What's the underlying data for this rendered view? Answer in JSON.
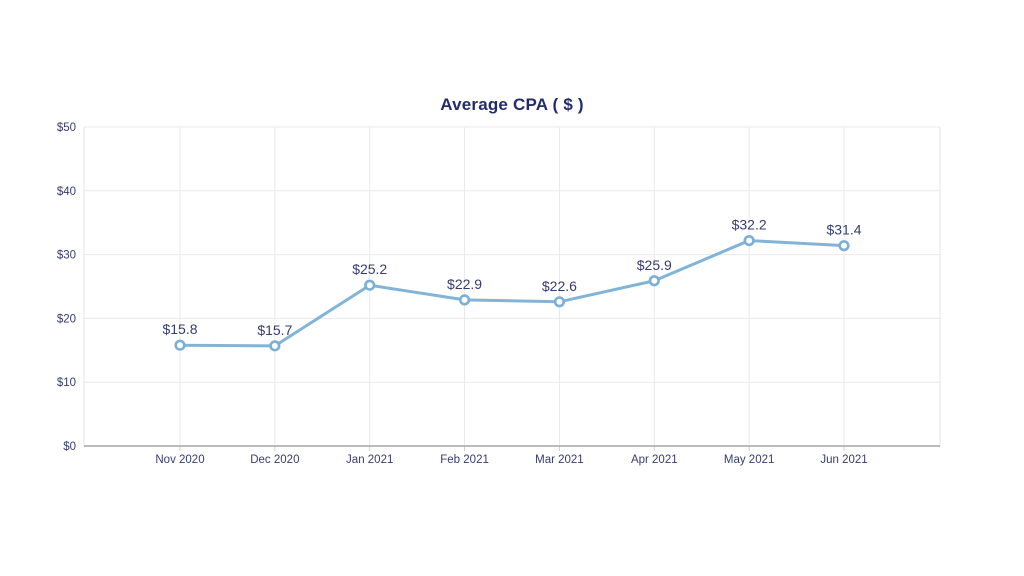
{
  "chart": {
    "title": "Average CPA ( $ )"
  },
  "chart_data": {
    "type": "line",
    "title": "Average CPA ( $ )",
    "categories": [
      "Nov 2020",
      "Dec 2020",
      "Jan 2021",
      "Feb 2021",
      "Mar 2021",
      "Apr 2021",
      "May 2021",
      "Jun 2021"
    ],
    "values": [
      15.8,
      15.7,
      25.2,
      22.9,
      22.6,
      25.9,
      32.2,
      31.4
    ],
    "point_labels": [
      "$15.8",
      "$15.7",
      "$25.2",
      "$22.9",
      "$22.6",
      "$25.9",
      "$32.2",
      "$31.4"
    ],
    "xlabel": "",
    "ylabel": "",
    "ylim": [
      0,
      50
    ],
    "y_ticks": [
      0,
      10,
      20,
      30,
      40,
      50
    ],
    "y_tick_labels": [
      "$0",
      "$10",
      "$20",
      "$30",
      "$40",
      "$50"
    ],
    "grid": true,
    "legend": "none",
    "colors": {
      "line": "#82b4d8",
      "marker_fill": "#ffffff",
      "marker_stroke": "#7bb0d6",
      "title_text": "#232c6a",
      "label_text": "#363d6e",
      "tick_text": "#363d6e",
      "grid_line": "#e9e9e9",
      "plot_border": "#e4e4e4",
      "bottom_axis": "#a6a6a6",
      "axis_tick": "#cfcfcf",
      "background": "#ffffff"
    }
  }
}
